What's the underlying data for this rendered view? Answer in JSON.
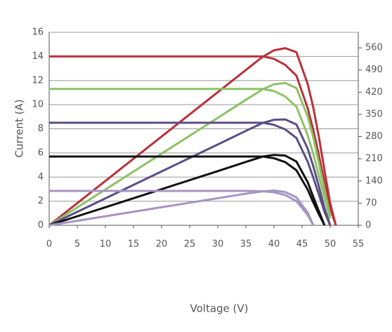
{
  "chart_data": {
    "type": "line",
    "x_label": "Voltage (V)",
    "y_label": "Current (A)",
    "x": [
      0,
      10,
      20,
      30,
      35,
      38,
      40,
      42,
      44,
      46,
      47,
      48,
      49,
      50,
      51
    ],
    "xlim": [
      0,
      55
    ],
    "xticks": [
      0,
      5,
      10,
      15,
      20,
      25,
      30,
      35,
      40,
      45,
      50,
      55
    ],
    "ylim": [
      0,
      16
    ],
    "yticks": [
      0,
      2,
      4,
      6,
      8,
      10,
      12,
      14,
      16
    ],
    "y2lim": [
      0,
      609
    ],
    "y2ticks": [
      0,
      70,
      140,
      210,
      280,
      350,
      420,
      490,
      560
    ],
    "grid": true,
    "series": [
      {
        "color": "#b8323a",
        "values": [
          14,
          14,
          14,
          14,
          14,
          14,
          13.8,
          13.3,
          12.4,
          9.7,
          7.9,
          5.8,
          3.5,
          1.4,
          0
        ]
      },
      {
        "color": "#b8323a",
        "axis": "y2",
        "values": [
          0,
          140,
          280,
          420,
          490,
          532,
          552,
          559,
          546,
          446,
          371,
          278,
          172,
          70,
          0
        ]
      },
      {
        "color": "#8cc265",
        "values": [
          11.3,
          11.3,
          11.3,
          11.3,
          11.3,
          11.3,
          11.13,
          10.68,
          9.83,
          7.46,
          5.9,
          4.07,
          2.26,
          0.57,
          null
        ]
      },
      {
        "color": "#8cc265",
        "axis": "y2",
        "values": [
          0,
          113,
          226,
          339,
          396,
          429,
          445,
          449,
          433,
          343,
          277,
          195,
          111,
          28,
          null
        ]
      },
      {
        "color": "#5b4e84",
        "values": [
          8.5,
          8.5,
          8.5,
          8.5,
          8.5,
          8.5,
          8.33,
          7.95,
          7.23,
          5.27,
          3.95,
          2.55,
          1.1,
          0,
          null
        ]
      },
      {
        "color": "#5b4e84",
        "axis": "y2",
        "values": [
          0,
          85,
          170,
          255,
          298,
          323,
          333,
          334,
          318,
          242,
          186,
          122,
          54,
          0,
          null
        ]
      },
      {
        "color": "#111111",
        "values": [
          5.7,
          5.7,
          5.7,
          5.7,
          5.7,
          5.7,
          5.56,
          5.24,
          4.56,
          2.96,
          1.9,
          0.91,
          0,
          null,
          null
        ]
      },
      {
        "color": "#111111",
        "axis": "y2",
        "values": [
          0,
          57,
          114,
          171,
          200,
          217,
          222,
          220,
          201,
          136,
          89,
          44,
          0,
          null,
          null
        ]
      },
      {
        "color": "#a595c4",
        "values": [
          2.85,
          2.85,
          2.85,
          2.85,
          2.85,
          2.82,
          2.74,
          2.51,
          2.0,
          0.86,
          0,
          null,
          null,
          null,
          null
        ]
      },
      {
        "color": "#a595c4",
        "axis": "y2",
        "values": [
          0,
          28.5,
          57,
          85.5,
          99.8,
          107,
          110,
          105,
          88,
          40,
          0,
          null,
          null,
          null,
          null
        ]
      }
    ]
  }
}
